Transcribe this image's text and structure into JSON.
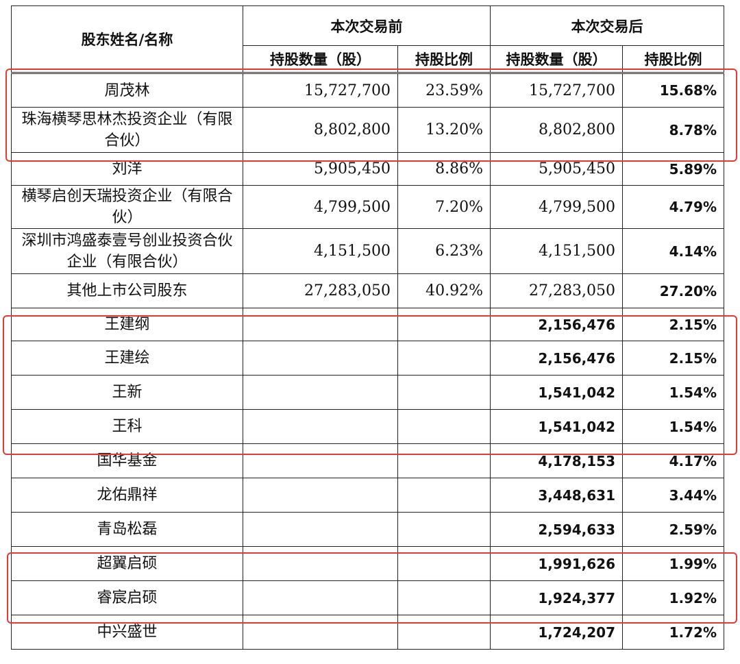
{
  "header": {
    "name_col": "股东姓名/名称",
    "before_group": "本次交易前",
    "after_group": "本次交易后",
    "shares_label": "持股数量（股）",
    "ratio_label": "持股比例"
  },
  "rows": [
    {
      "name": "周茂林",
      "before_shares": "15,727,700",
      "before_ratio": "23.59%",
      "after_shares": "15,727,700",
      "after_ratio": "15.68%"
    },
    {
      "name": "珠海横琴思林杰投资企业（有限合伙）",
      "before_shares": "8,802,800",
      "before_ratio": "13.20%",
      "after_shares": "8,802,800",
      "after_ratio": "8.78%"
    },
    {
      "name": "刘洋",
      "before_shares": "5,905,450",
      "before_ratio": "8.86%",
      "after_shares": "5,905,450",
      "after_ratio": "5.89%"
    },
    {
      "name": "横琴启创天瑞投资企业（有限合伙）",
      "before_shares": "4,799,500",
      "before_ratio": "7.20%",
      "after_shares": "4,799,500",
      "after_ratio": "4.79%"
    },
    {
      "name": "深圳市鸿盛泰壹号创业投资合伙企业（有限合伙）",
      "before_shares": "4,151,500",
      "before_ratio": "6.23%",
      "after_shares": "4,151,500",
      "after_ratio": "4.14%"
    },
    {
      "name": "其他上市公司股东",
      "before_shares": "27,283,050",
      "before_ratio": "40.92%",
      "after_shares": "27,283,050",
      "after_ratio": "27.20%"
    },
    {
      "name": "王建纲",
      "before_shares": "",
      "before_ratio": "",
      "after_shares": "2,156,476",
      "after_ratio": "2.15%"
    },
    {
      "name": "王建绘",
      "before_shares": "",
      "before_ratio": "",
      "after_shares": "2,156,476",
      "after_ratio": "2.15%"
    },
    {
      "name": "王新",
      "before_shares": "",
      "before_ratio": "",
      "after_shares": "1,541,042",
      "after_ratio": "1.54%"
    },
    {
      "name": "王科",
      "before_shares": "",
      "before_ratio": "",
      "after_shares": "1,541,042",
      "after_ratio": "1.54%"
    },
    {
      "name": "国华基金",
      "before_shares": "",
      "before_ratio": "",
      "after_shares": "4,178,153",
      "after_ratio": "4.17%"
    },
    {
      "name": "龙佑鼎祥",
      "before_shares": "",
      "before_ratio": "",
      "after_shares": "3,448,631",
      "after_ratio": "3.44%"
    },
    {
      "name": "青岛松磊",
      "before_shares": "",
      "before_ratio": "",
      "after_shares": "2,594,633",
      "after_ratio": "2.59%"
    },
    {
      "name": "超翼启硕",
      "before_shares": "",
      "before_ratio": "",
      "after_shares": "1,991,626",
      "after_ratio": "1.99%"
    },
    {
      "name": "睿宸启硕",
      "before_shares": "",
      "before_ratio": "",
      "after_shares": "1,924,377",
      "after_ratio": "1.92%"
    },
    {
      "name": "中兴盛世",
      "before_shares": "",
      "before_ratio": "",
      "after_shares": "1,724,207",
      "after_ratio": "1.72%"
    }
  ],
  "highlight_color": "#e53935"
}
